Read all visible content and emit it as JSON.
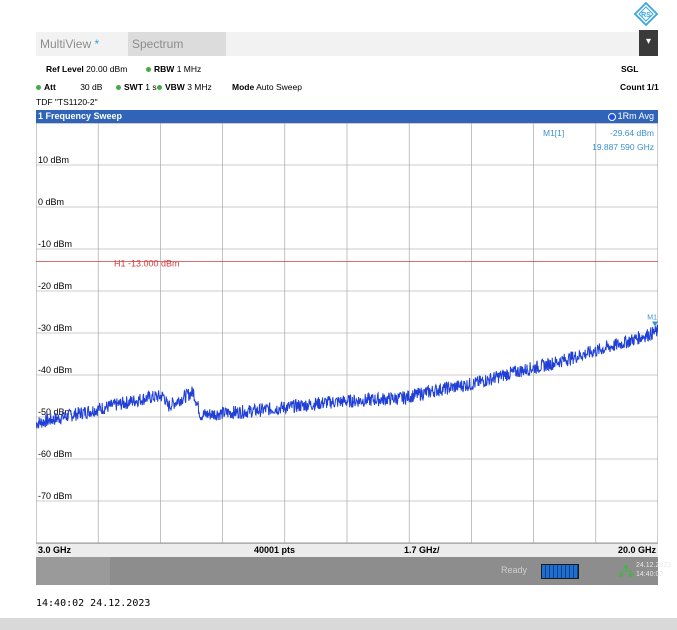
{
  "tabs": {
    "multiview": "MultiView",
    "multiview_star": "*",
    "spectrum": "Spectrum"
  },
  "menu_button": "▾",
  "params": {
    "ref_level_label": "Ref Level",
    "ref_level_value": "20.00 dBm",
    "rbw_label": "RBW",
    "rbw_value": "1 MHz",
    "att_label": "Att",
    "att_value": "30 dB",
    "swt_label": "SWT",
    "swt_value": "1 s",
    "vbw_label": "VBW",
    "vbw_value": "3 MHz",
    "mode_label": "Mode",
    "mode_value": "Auto Sweep",
    "tdf": "TDF \"TS1120-2\"",
    "sgl": "SGL",
    "count": "Count 1/1"
  },
  "sweep": {
    "title": "1 Frequency Sweep",
    "trace": "1Rm Avg"
  },
  "marker": {
    "label": "M1[1]",
    "level": "-29.64 dBm",
    "freq": "19.887 590 GHz",
    "tag": "M1"
  },
  "limit_line": {
    "label": "H1 -13.000 dBm",
    "level_dbm": -13,
    "color": "#d93a3a"
  },
  "y_axis": {
    "labels": [
      "10 dBm",
      "0 dBm",
      "-10 dBm",
      "-20 dBm",
      "-30 dBm",
      "-40 dBm",
      "-50 dBm",
      "-60 dBm",
      "-70 dBm"
    ],
    "top_dbm": 20,
    "bottom_dbm": -80
  },
  "x_axis": {
    "start": "3.0 GHz",
    "points": "40001 pts",
    "span": "1.7 GHz/",
    "stop": "20.0 GHz"
  },
  "status": {
    "ready": "Ready",
    "date": "24.12.2023",
    "time": "14:40:02"
  },
  "timestamp": "14:40:02  24.12.2023",
  "trace_color": "#1f3fd6",
  "trace_profile": [
    {
      "f": 3.0,
      "dbm": -51.5
    },
    {
      "f": 4.0,
      "dbm": -49.5
    },
    {
      "f": 5.0,
      "dbm": -47.5
    },
    {
      "f": 6.0,
      "dbm": -45.5
    },
    {
      "f": 6.5,
      "dbm": -45.0
    },
    {
      "f": 6.6,
      "dbm": -47.5
    },
    {
      "f": 7.3,
      "dbm": -44.0
    },
    {
      "f": 7.5,
      "dbm": -49.5
    },
    {
      "f": 9.0,
      "dbm": -48.5
    },
    {
      "f": 11.0,
      "dbm": -46.5
    },
    {
      "f": 13.0,
      "dbm": -45.5
    },
    {
      "f": 14.0,
      "dbm": -43.5
    },
    {
      "f": 15.0,
      "dbm": -42.0
    },
    {
      "f": 16.0,
      "dbm": -39.5
    },
    {
      "f": 17.0,
      "dbm": -37.5
    },
    {
      "f": 18.0,
      "dbm": -35.0
    },
    {
      "f": 19.0,
      "dbm": -32.5
    },
    {
      "f": 20.0,
      "dbm": -29.6
    }
  ]
}
